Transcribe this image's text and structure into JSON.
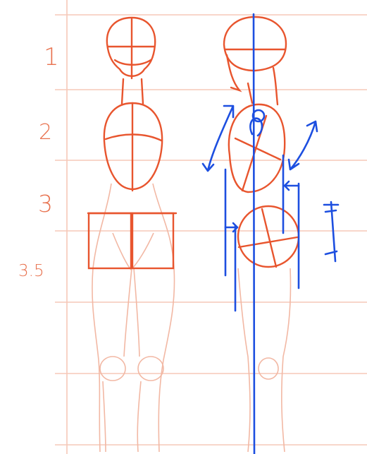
{
  "heights": {
    "label_1": "1",
    "label_2": "2",
    "label_3": "3",
    "label_3_5": "3.5"
  },
  "colors": {
    "guide_line": "#f6c8b8",
    "construction": "#e8552e",
    "faint_sketch": "#f2b8a4",
    "annotation": "#1d4fe0"
  }
}
